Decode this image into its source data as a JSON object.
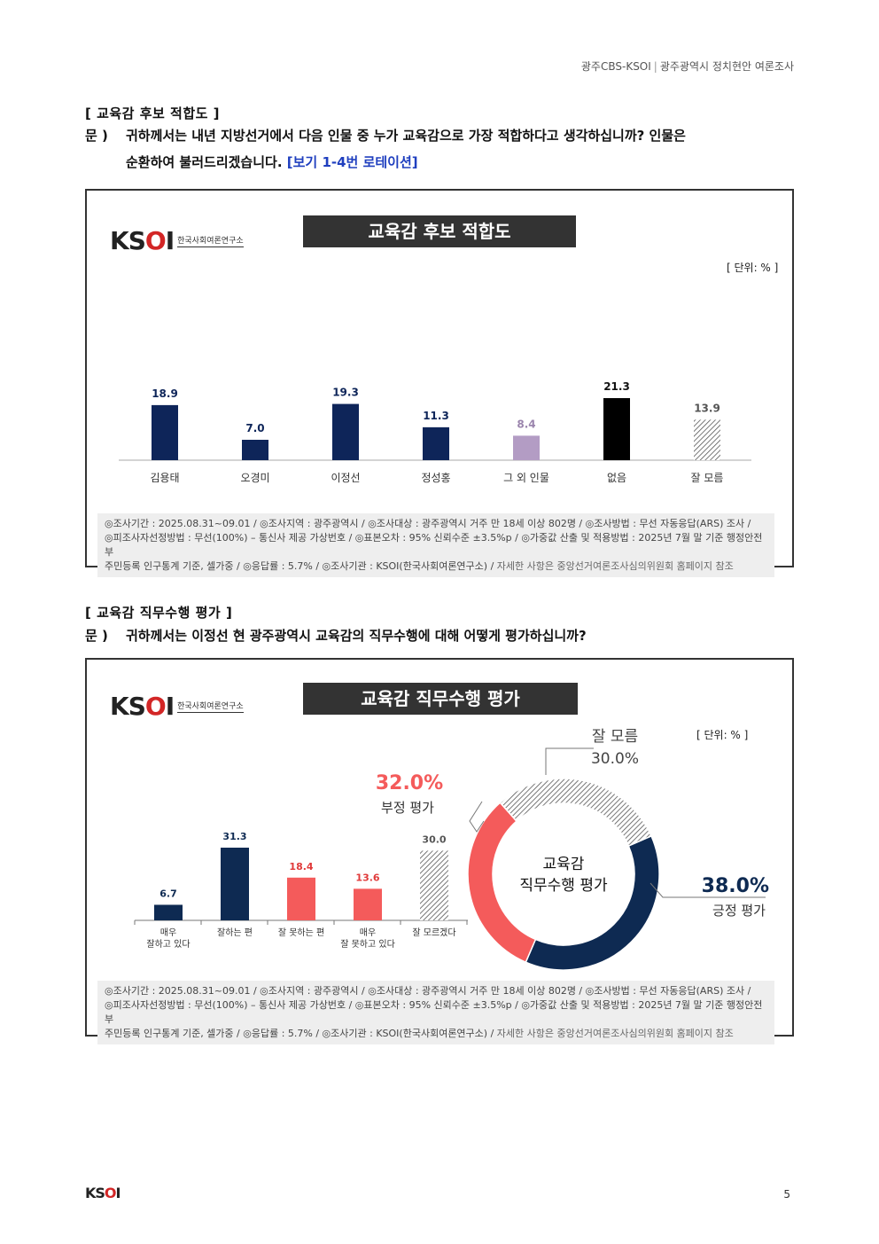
{
  "header": {
    "source": "광주CBS-KSOI",
    "title": "광주광역시 정치현안 여론조사"
  },
  "section1": {
    "title": "[ 교육감 후보 적합도 ]",
    "q_label": "문 )",
    "q_line1": "귀하께서는 내년 지방선거에서 다음 인물 중 누가 교육감으로 가장 적합하다고 생각하십니까? 인물은",
    "q_line2": "순환하여 불러드리겠습니다.",
    "q_rotation": "[보기 1-4번 로테이션]"
  },
  "panel1": {
    "logo_mark": "KSOI",
    "logo_sub": "한국사회여론연구소",
    "unit": "[ 단위: % ]"
  },
  "chart_data": [
    {
      "type": "bar",
      "title": "교육감 후보 적합도",
      "categories": [
        "김용태",
        "오경미",
        "이정선",
        "정성홍",
        "그 외 인물",
        "없음",
        "잘 모름"
      ],
      "values": [
        18.9,
        7.0,
        19.3,
        11.3,
        8.4,
        21.3,
        13.9
      ],
      "value_labels": [
        "18.9",
        "7.0",
        "19.3",
        "11.3",
        "8.4",
        "21.3",
        "13.9"
      ],
      "colors": [
        "#0e2559",
        "#0e2559",
        "#0e2559",
        "#0e2559",
        "#b39cc4",
        "#000000",
        "hatch"
      ],
      "label_colors": [
        "#0e2559",
        "#0e2559",
        "#0e2559",
        "#0e2559",
        "#9b85ad",
        "#111111",
        "#555555"
      ],
      "ylim": [
        0,
        25
      ]
    },
    {
      "type": "bar",
      "title": "교육감 직무수행 평가",
      "categories": [
        "매우\n잘하고 있다",
        "잘하는 편",
        "잘 못하는 편",
        "매우\n잘 못하고 있다",
        "잘 모르겠다"
      ],
      "values": [
        6.7,
        31.3,
        18.4,
        13.6,
        30.0
      ],
      "value_labels": [
        "6.7",
        "31.3",
        "18.4",
        "13.6",
        "30.0"
      ],
      "colors": [
        "#0e2a52",
        "#0e2a52",
        "#f45b5b",
        "#f45b5b",
        "hatch"
      ],
      "label_colors": [
        "#0e2a52",
        "#0e2a52",
        "#e03a3a",
        "#e03a3a",
        "#555555"
      ],
      "ylim": [
        0,
        35
      ]
    },
    {
      "type": "pie",
      "center_label": [
        "교육감",
        "직무수행 평가"
      ],
      "slices": [
        {
          "name": "긍정 평가",
          "value": 38.0,
          "label": "38.0%",
          "color": "#0e2a52"
        },
        {
          "name": "부정 평가",
          "value": 32.0,
          "label": "32.0%",
          "color": "#f45b5b"
        },
        {
          "name": "잘 모름",
          "value": 30.0,
          "label": "30.0%",
          "color": "hatch"
        }
      ]
    }
  ],
  "section2": {
    "title": "[ 교육감 직무수행 평가 ]",
    "q_label": "문 )",
    "q_line1": "귀하께서는 이정선 현 광주광역시 교육감의 직무수행에 대해 어떻게 평가하십니까?"
  },
  "panel2": {
    "logo_mark": "KSOI",
    "logo_sub": "한국사회여론연구소",
    "unit": "[ 단위: % ]"
  },
  "footnote": {
    "line1": "◎조사기간 : 2025.08.31~09.01 / ◎조사지역 : 광주광역시 / ◎조사대상 : 광주광역시 거주 만 18세 이상 802명 / ◎조사방법 : 무선 자동응답(ARS) 조사 /",
    "line2": "◎피조사자선정방법 : 무선(100%) – 통신사 제공 가상번호 / ◎표본오차 : 95% 신뢰수준 ±3.5%p / ◎가중값 산출 및 적용방법 : 2025년 7월 말 기준 행정안전부",
    "line3": "주민등록 인구통계 기준, 셀가중 / ◎응답률 : 5.7% / ◎조사기관 : KSOI(한국사회여론연구소) /",
    "line3_muted": "자세한 사항은 중앙선거여론조사심의위원회 홈페이지 참조"
  },
  "footer": {
    "logo": "KSOI",
    "page": "5"
  }
}
